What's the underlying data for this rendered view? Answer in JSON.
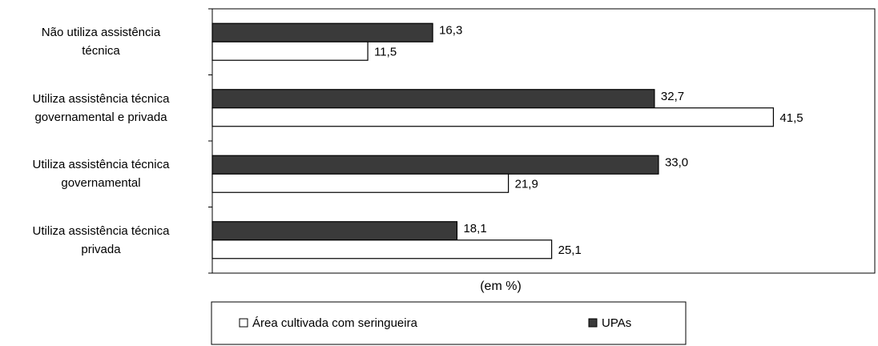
{
  "chart_data": {
    "type": "bar",
    "orientation": "horizontal",
    "categories": [
      "Não utiliza assistência\ntécnica",
      "Utiliza assistência técnica\ngovernamental e privada",
      "Utiliza assistência técnica\ngovernamental",
      "Utiliza assistência técnica\nprivada"
    ],
    "series": [
      {
        "name": "UPAs",
        "color": "#3a3a3a",
        "values": [
          16.3,
          32.7,
          33.0,
          18.1
        ],
        "value_labels": [
          "16,3",
          "32,7",
          "33,0",
          "18,1"
        ]
      },
      {
        "name": "Área cultivada com seringueira",
        "color": "#ffffff",
        "values": [
          11.5,
          41.5,
          21.9,
          25.1
        ],
        "value_labels": [
          "11,5",
          "41,5",
          "21,9",
          "25,1"
        ]
      }
    ],
    "xlabel": "(em %)",
    "xlim": [
      0,
      49
    ]
  }
}
